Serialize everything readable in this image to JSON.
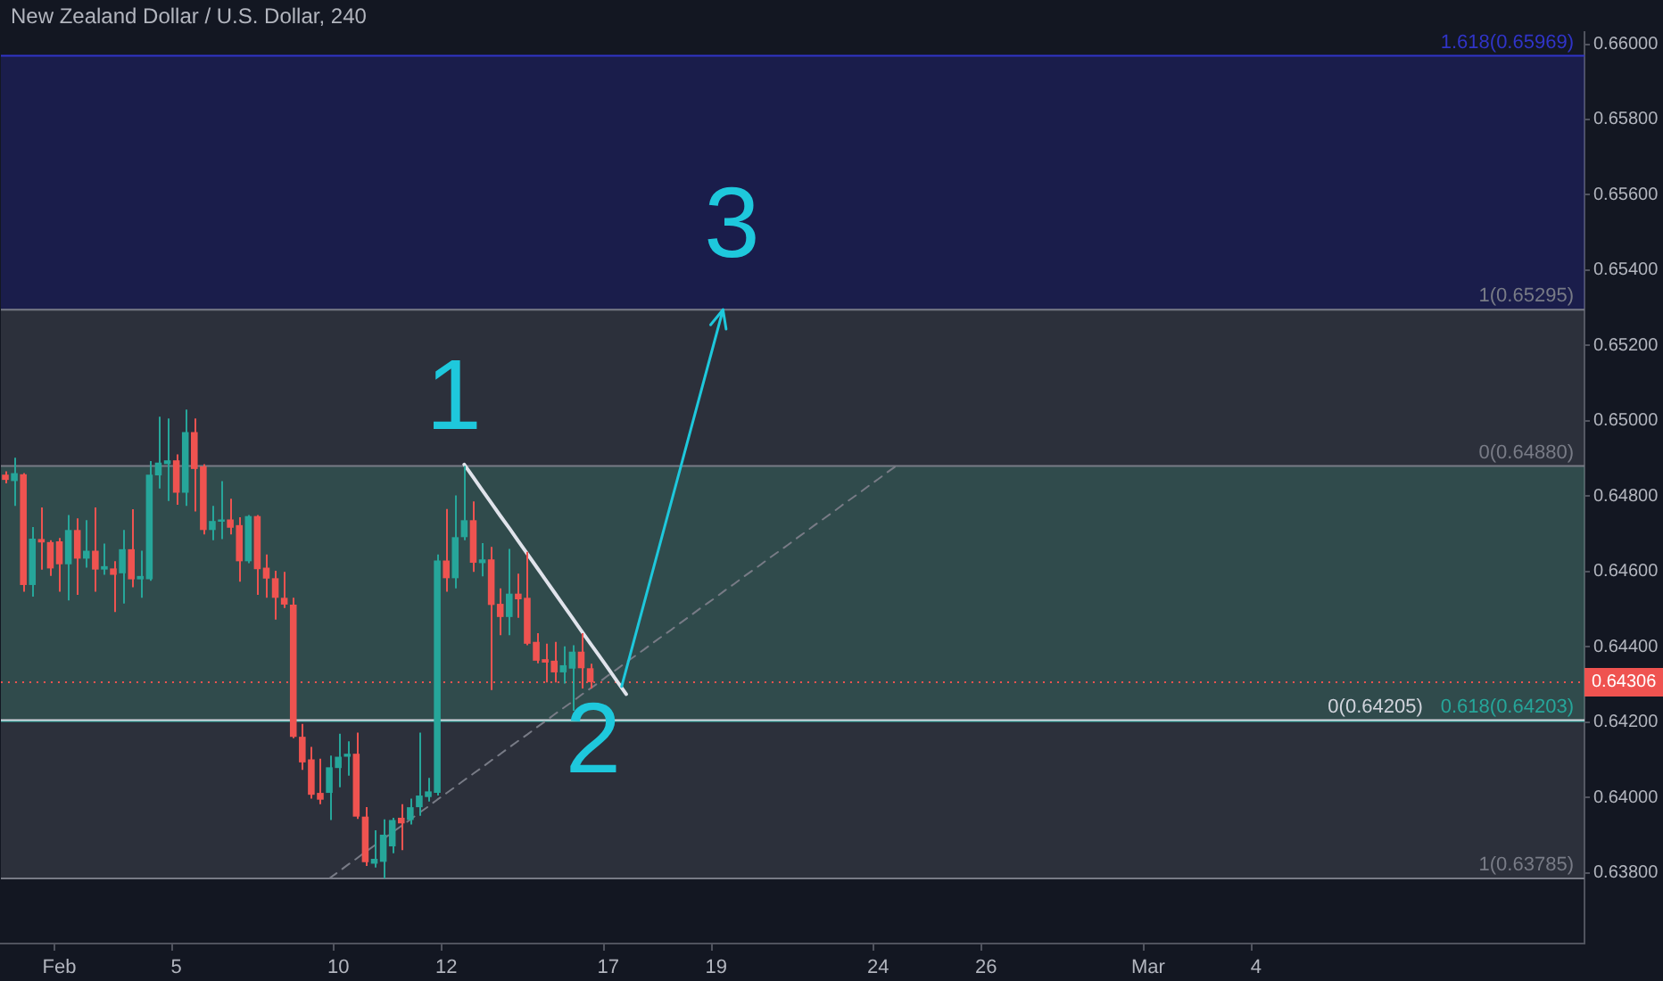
{
  "chart_data": {
    "type": "candlestick",
    "title": "New Zealand Dollar / U.S. Dollar, 240",
    "categories": [
      null,
      null,
      null,
      null,
      null,
      null,
      "Feb",
      null,
      null,
      null,
      null,
      null,
      null,
      null,
      null,
      null,
      null,
      null,
      null,
      "5",
      null,
      null,
      null,
      null,
      null,
      null,
      null,
      null,
      null,
      null,
      null,
      null,
      null,
      null,
      null,
      null,
      null,
      "10",
      null,
      null,
      null,
      null,
      null,
      null,
      null,
      null,
      null,
      null,
      null,
      "12",
      null,
      null,
      null,
      null,
      null,
      null,
      null,
      null,
      null,
      null,
      null,
      null,
      null,
      null,
      null,
      null,
      null,
      "17",
      null,
      null,
      null,
      null,
      null,
      null,
      null,
      null,
      null,
      null,
      null,
      "19",
      null,
      null,
      null,
      null,
      null,
      null,
      null,
      null,
      null,
      null,
      null,
      null,
      null,
      null,
      null,
      null,
      null,
      "24",
      null,
      null,
      null,
      null,
      null,
      null,
      null,
      null,
      null,
      null,
      null,
      "26",
      null,
      null,
      null,
      null,
      null,
      null,
      null,
      null,
      null,
      null,
      null,
      null,
      null,
      null,
      null,
      null,
      null,
      "Mar",
      null,
      null,
      null,
      null,
      null,
      null,
      null,
      null,
      null,
      null,
      null,
      "4",
      null,
      null,
      null,
      null,
      null,
      null,
      null,
      null,
      null,
      null,
      null,
      null,
      null,
      null,
      null,
      null,
      null,
      null,
      null,
      null,
      null,
      null,
      null,
      null,
      null,
      null,
      null,
      null,
      null,
      null,
      null,
      null,
      null,
      null,
      null,
      null
    ],
    "ohlc": [
      [
        0.64857,
        0.64866,
        0.64834,
        0.64843
      ],
      [
        0.6484,
        0.64902,
        0.64774,
        0.64861
      ],
      [
        0.64858,
        0.64861,
        0.64546,
        0.64564
      ],
      [
        0.64564,
        0.64718,
        0.64533,
        0.64687
      ],
      [
        0.64686,
        0.6477,
        0.64605,
        0.64677
      ],
      [
        0.64678,
        0.64683,
        0.64588,
        0.64608
      ],
      [
        0.6468,
        0.64689,
        0.64546,
        0.64619
      ],
      [
        0.64619,
        0.6475,
        0.64523,
        0.6471
      ],
      [
        0.6471,
        0.64741,
        0.64538,
        0.64634
      ],
      [
        0.64634,
        0.64736,
        0.6461,
        0.64655
      ],
      [
        0.64655,
        0.6477,
        0.64546,
        0.64605
      ],
      [
        0.64605,
        0.64674,
        0.64591,
        0.64614
      ],
      [
        0.64608,
        0.64627,
        0.64492,
        0.64591
      ],
      [
        0.64595,
        0.6471,
        0.64515,
        0.64659
      ],
      [
        0.64659,
        0.64765,
        0.64558,
        0.64579
      ],
      [
        0.64579,
        0.64655,
        0.6453,
        0.64588
      ],
      [
        0.64579,
        0.64893,
        0.64575,
        0.64857
      ],
      [
        0.64855,
        0.65011,
        0.6482,
        0.64889
      ],
      [
        0.64885,
        0.65006,
        0.64787,
        0.64895
      ],
      [
        0.64895,
        0.64911,
        0.64777,
        0.64809
      ],
      [
        0.64809,
        0.6503,
        0.64774,
        0.6497
      ],
      [
        0.6497,
        0.65006,
        0.64759,
        0.64872
      ],
      [
        0.64879,
        0.64885,
        0.64698,
        0.6471
      ],
      [
        0.6471,
        0.64774,
        0.64683,
        0.64734
      ],
      [
        0.64732,
        0.6484,
        0.64686,
        0.64738
      ],
      [
        0.64738,
        0.64793,
        0.64698,
        0.64716
      ],
      [
        0.64723,
        0.64744,
        0.64573,
        0.64627
      ],
      [
        0.64627,
        0.6475,
        0.64622,
        0.64747
      ],
      [
        0.64747,
        0.6475,
        0.64538,
        0.64606
      ],
      [
        0.6461,
        0.64645,
        0.6453,
        0.64581
      ],
      [
        0.64582,
        0.64602,
        0.64472,
        0.6453
      ],
      [
        0.6453,
        0.64599,
        0.64503,
        0.64512
      ],
      [
        0.64512,
        0.6453,
        0.64157,
        0.64161
      ],
      [
        0.64161,
        0.64195,
        0.64073,
        0.64093
      ],
      [
        0.64101,
        0.64134,
        0.63997,
        0.64007
      ],
      [
        0.64012,
        0.64103,
        0.63982,
        0.63994
      ],
      [
        0.64012,
        0.64111,
        0.6394,
        0.6408
      ],
      [
        0.64078,
        0.64169,
        0.64027,
        0.64108
      ],
      [
        0.64108,
        0.64149,
        0.64058,
        0.64116
      ],
      [
        0.64116,
        0.64172,
        0.63943,
        0.63949
      ],
      [
        0.63949,
        0.63974,
        0.63818,
        0.63828
      ],
      [
        0.63824,
        0.63913,
        0.63814,
        0.63837
      ],
      [
        0.63829,
        0.63942,
        0.63785,
        0.63901
      ],
      [
        0.6387,
        0.63946,
        0.63852,
        0.6394
      ],
      [
        0.63946,
        0.63982,
        0.6386,
        0.63931
      ],
      [
        0.6394,
        0.63997,
        0.63928,
        0.63974
      ],
      [
        0.63974,
        0.64172,
        0.63951,
        0.64005
      ],
      [
        0.64001,
        0.64052,
        0.63989,
        0.64016
      ],
      [
        0.64012,
        0.64645,
        0.64005,
        0.64629
      ],
      [
        0.64629,
        0.64766,
        0.64546,
        0.64582
      ],
      [
        0.64582,
        0.64802,
        0.64555,
        0.64691
      ],
      [
        0.64691,
        0.6488,
        0.64683,
        0.64736
      ],
      [
        0.64736,
        0.64786,
        0.64599,
        0.64623
      ],
      [
        0.64622,
        0.64675,
        0.64587,
        0.64632
      ],
      [
        0.64632,
        0.64665,
        0.64285,
        0.64511
      ],
      [
        0.64514,
        0.64555,
        0.64431,
        0.64479
      ],
      [
        0.64479,
        0.6466,
        0.64431,
        0.64541
      ],
      [
        0.64541,
        0.64594,
        0.64477,
        0.64526
      ],
      [
        0.6453,
        0.64652,
        0.64404,
        0.64408
      ],
      [
        0.64413,
        0.64436,
        0.64356,
        0.64363
      ],
      [
        0.64367,
        0.64408,
        0.64305,
        0.64358
      ],
      [
        0.64363,
        0.64413,
        0.64305,
        0.64332
      ],
      [
        0.64332,
        0.64401,
        0.64302,
        0.64351
      ],
      [
        0.64342,
        0.64404,
        0.6423,
        0.64387
      ],
      [
        0.64387,
        0.64436,
        0.64289,
        0.64343
      ],
      [
        0.64343,
        0.64355,
        0.64289,
        0.64306
      ],
      null,
      null,
      null,
      null,
      null,
      null,
      null,
      null,
      null,
      null,
      null,
      null,
      null,
      null,
      null,
      null,
      null,
      null,
      null,
      null,
      null,
      null,
      null,
      null,
      null,
      null,
      null,
      null,
      null,
      null,
      null,
      null,
      null,
      null,
      null,
      null,
      null,
      null,
      null,
      null,
      null,
      null,
      null,
      null,
      null,
      null,
      null,
      null,
      null,
      null,
      null,
      null,
      null,
      null,
      null,
      null,
      null,
      null,
      null,
      null,
      null,
      null,
      null,
      null,
      null,
      null,
      null,
      null,
      null,
      null,
      null,
      null,
      null,
      null,
      null,
      null,
      null,
      null,
      null,
      null,
      null,
      null,
      null,
      null,
      null,
      null,
      null,
      null,
      null,
      null,
      null,
      null,
      null,
      null,
      null,
      null,
      null,
      null,
      null,
      null,
      null,
      null,
      null,
      null,
      null,
      null,
      null,
      null,
      null,
      null
    ],
    "colors": [
      "#ef5350",
      "#26a69a",
      "#ef5350",
      "#26a69a",
      "#ef5350",
      "#ef5350",
      "#ef5350",
      "#26a69a",
      "#ef5350",
      "#26a69a",
      "#ef5350",
      "#26a69a",
      "#ef5350",
      "#26a69a",
      "#ef5350",
      "#26a69a",
      "#26a69a",
      "#26a69a",
      "#26a69a",
      "#ef5350",
      "#26a69a",
      "#ef5350",
      "#ef5350",
      "#26a69a",
      "#26a69a",
      "#ef5350",
      "#ef5350",
      "#26a69a",
      "#ef5350",
      "#ef5350",
      "#ef5350",
      "#ef5350",
      "#ef5350",
      "#ef5350",
      "#ef5350",
      "#ef5350",
      "#26a69a",
      "#26a69a",
      "#26a69a",
      "#ef5350",
      "#ef5350",
      "#26a69a",
      "#26a69a",
      "#26a69a",
      "#ef5350",
      "#26a69a",
      "#26a69a",
      "#26a69a",
      "#26a69a",
      "#ef5350",
      "#26a69a",
      "#26a69a",
      "#ef5350",
      "#26a69a",
      "#ef5350",
      "#ef5350",
      "#26a69a",
      "#ef5350",
      "#ef5350",
      "#ef5350",
      "#ef5350",
      "#ef5350",
      "#26a69a",
      "#26a69a",
      "#ef5350",
      "#ef5350",
      null,
      null,
      null,
      null,
      null,
      null,
      null,
      null,
      null,
      null,
      null,
      null,
      null,
      null,
      null,
      null,
      null,
      null,
      null,
      null,
      null,
      null,
      null,
      null,
      null,
      null,
      null,
      null,
      null,
      null,
      null,
      null,
      null,
      null,
      null,
      null,
      null,
      null,
      null,
      null,
      null,
      null,
      null,
      null,
      null,
      null,
      null,
      null,
      null,
      null,
      null,
      null,
      null,
      null,
      null,
      null,
      null,
      null,
      null,
      null,
      null,
      null,
      null,
      null,
      null,
      null,
      null,
      null,
      null,
      null,
      null,
      null,
      null,
      null,
      null,
      null,
      null,
      null,
      null,
      null,
      null,
      null,
      null,
      null,
      null,
      null,
      null,
      null,
      null,
      null,
      null,
      null,
      null,
      null,
      null,
      null,
      null,
      null,
      null,
      null,
      null,
      null,
      null,
      null,
      null,
      null,
      null,
      null,
      null,
      null
    ],
    "series": [
      {
        "type": "line",
        "color": "#e0e3eb",
        "values": [
          null,
          null,
          null,
          null,
          null,
          null,
          null,
          null,
          null,
          null,
          null,
          null,
          null,
          null,
          null,
          null,
          null,
          null,
          null,
          null,
          null,
          null,
          null,
          null,
          null,
          null,
          null,
          null,
          null,
          null,
          null,
          null,
          null,
          null,
          null,
          null,
          null,
          null,
          null,
          null,
          null,
          null,
          null,
          null,
          null,
          null,
          null,
          null,
          null,
          null,
          null,
          0.64884,
          0.6485,
          0.64816,
          0.64782,
          0.64748,
          0.64715,
          0.64681,
          0.64647,
          0.64613,
          0.64579,
          0.64545,
          0.64511,
          0.64477,
          0.64443,
          0.64409,
          0.64376,
          0.64342,
          0.64308,
          0.64274,
          null,
          null,
          null,
          null,
          null,
          null,
          null,
          null,
          null,
          null,
          null,
          null,
          null,
          null,
          null,
          null,
          null,
          null,
          null,
          null,
          null,
          null,
          null,
          null,
          null,
          null,
          null,
          null,
          null,
          null,
          null,
          null,
          null,
          null,
          null,
          null,
          null,
          null,
          null,
          null,
          null,
          null,
          null,
          null,
          null,
          null,
          null,
          null,
          null,
          null,
          null,
          null,
          null,
          null,
          null,
          null,
          null,
          null,
          null,
          null,
          null,
          null,
          null,
          null,
          null,
          null,
          null,
          null,
          null,
          null,
          null,
          null,
          null,
          null,
          null,
          null,
          null,
          null,
          null,
          null,
          null,
          null,
          null,
          null,
          null,
          null,
          null,
          null,
          null,
          null,
          null,
          null,
          null,
          null,
          null,
          null,
          null,
          null,
          null,
          null,
          null,
          null,
          null,
          null,
          null,
          null
        ]
      },
      {
        "type": "line",
        "color": "#787b86",
        "line_style": "dashed",
        "values": [
          null,
          null,
          null,
          null,
          null,
          null,
          null,
          null,
          null,
          null,
          null,
          null,
          null,
          null,
          null,
          null,
          null,
          null,
          null,
          null,
          null,
          null,
          null,
          null,
          null,
          null,
          null,
          null,
          null,
          null,
          null,
          null,
          null,
          null,
          null,
          null,
          0.63785,
          0.63802,
          0.6382,
          0.63837,
          0.63855,
          0.63872,
          0.63889,
          0.63907,
          0.63924,
          0.63941,
          0.63959,
          0.63976,
          0.63994,
          0.64011,
          0.64028,
          0.64046,
          0.64063,
          0.6408,
          0.64098,
          0.64115,
          0.64133,
          0.6415,
          0.64167,
          0.64185,
          0.64202,
          0.6422,
          0.64237,
          0.64254,
          0.64272,
          0.64289,
          0.64306,
          0.64324,
          0.64341,
          0.64359,
          0.64376,
          0.64393,
          0.64411,
          0.64428,
          0.64445,
          0.64463,
          0.6448,
          0.64498,
          0.64515,
          0.64532,
          0.6455,
          0.64567,
          0.64585,
          0.64602,
          0.64619,
          0.64637,
          0.64654,
          0.64671,
          0.64689,
          0.64706,
          0.64724,
          0.64741,
          0.64758,
          0.64776,
          0.64793,
          0.6481,
          0.64828,
          0.64845,
          0.64863,
          0.6488,
          null,
          null,
          null,
          null,
          null,
          null,
          null,
          null,
          null,
          null,
          null,
          null,
          null,
          null,
          null,
          null,
          null,
          null,
          null,
          null,
          null,
          null,
          null,
          null,
          null,
          null,
          null,
          null,
          null,
          null,
          null,
          null,
          null,
          null,
          null,
          null,
          null,
          null,
          null,
          null,
          null,
          null,
          null,
          null,
          null,
          null,
          null,
          null,
          null,
          null,
          null,
          null,
          null,
          null,
          null,
          null,
          null,
          null,
          null,
          null,
          null,
          null,
          null,
          null,
          null,
          null,
          null,
          null,
          null,
          null,
          null,
          null,
          null,
          null,
          null,
          null
        ]
      }
    ],
    "ylim": [
      0.63612,
      0.66032
    ],
    "yticks": [
      {
        "value": 0.638,
        "label": "0.63800"
      },
      {
        "value": 0.64,
        "label": "0.64000"
      },
      {
        "value": 0.642,
        "label": "0.64200"
      },
      {
        "value": 0.644,
        "label": "0.64400"
      },
      {
        "value": 0.646,
        "label": "0.64600"
      },
      {
        "value": 0.648,
        "label": "0.64800"
      },
      {
        "value": 0.65,
        "label": "0.65000"
      },
      {
        "value": 0.652,
        "label": "0.65200"
      },
      {
        "value": 0.654,
        "label": "0.65400"
      },
      {
        "value": 0.656,
        "label": "0.65600"
      },
      {
        "value": 0.658,
        "label": "0.65800"
      },
      {
        "value": 0.66,
        "label": "0.66000"
      }
    ],
    "ref_lines": [
      {
        "axis": "y",
        "value": 0.6488,
        "label": "0(0.64880)",
        "color": "#787b86"
      },
      {
        "axis": "y",
        "value": 0.64203,
        "label": "0.618(0.64203)",
        "color": "#26a69a"
      },
      {
        "axis": "y",
        "value": 0.63785,
        "label": "1(0.63785)",
        "color": "#787b86"
      },
      {
        "axis": "y",
        "value": 0.64205,
        "label": "0(0.64205)",
        "color": "#d1d4dc"
      },
      {
        "axis": "y",
        "value": 0.65295,
        "label": "1(0.65295)",
        "color": "#787b86"
      },
      {
        "axis": "y",
        "value": 0.65969,
        "label": "1.618(0.65969)",
        "color": "#3034c8"
      },
      {
        "axis": "y",
        "value": 0.64306,
        "label": "0.64306",
        "color": "#ef5350",
        "line_style": "dotted"
      }
    ],
    "bands": [
      {
        "axis": "y",
        "from": 0.64203,
        "to": 0.6488,
        "color": "#26a67a"
      },
      {
        "axis": "y",
        "from": 0.63785,
        "to": 0.64203,
        "color": "#787b86"
      },
      {
        "axis": "y",
        "from": 0.64205,
        "to": 0.65295,
        "color": "#787b86"
      },
      {
        "axis": "y",
        "from": 0.65295,
        "to": 0.65969,
        "color": "#3030c8"
      }
    ],
    "annotations": [
      "1",
      {
        "text": "2",
        "y": 0.64205
      },
      {
        "text": "3",
        "y": 0.65295
      }
    ]
  }
}
